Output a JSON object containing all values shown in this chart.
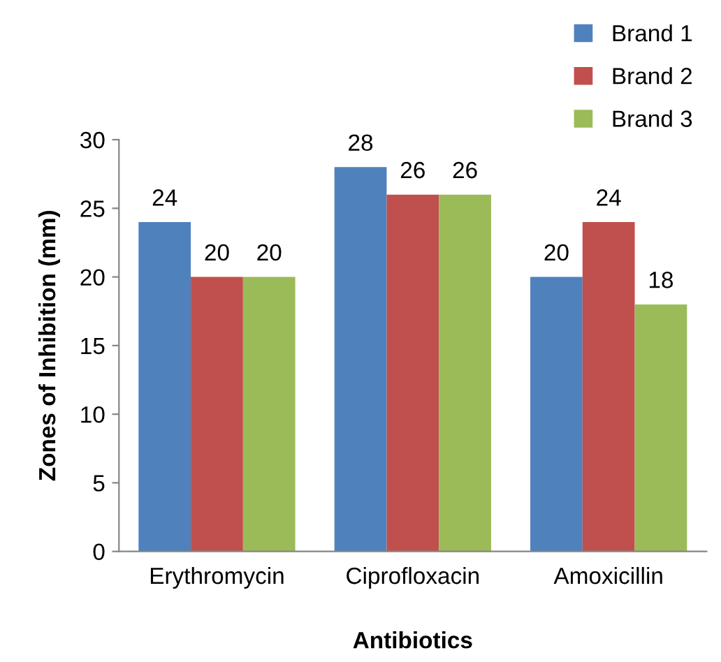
{
  "chart_data": {
    "type": "bar",
    "xlabel": "Antibiotics",
    "ylabel": "Zones of Inhibition (mm)",
    "categories": [
      "Erythromycin",
      "Ciprofloxacin",
      "Amoxicillin"
    ],
    "series": [
      {
        "name": "Brand 1",
        "color": "#4f81bd",
        "values": [
          24,
          28,
          20
        ]
      },
      {
        "name": "Brand 2",
        "color": "#c0504d",
        "values": [
          20,
          26,
          24
        ]
      },
      {
        "name": "Brand 3",
        "color": "#9bbb59",
        "values": [
          20,
          26,
          18
        ]
      }
    ],
    "ylim": [
      0,
      30
    ],
    "yticks": [
      0,
      5,
      10,
      15,
      20,
      25,
      30
    ],
    "data_labels": true,
    "legend": "top right",
    "grid": false
  }
}
